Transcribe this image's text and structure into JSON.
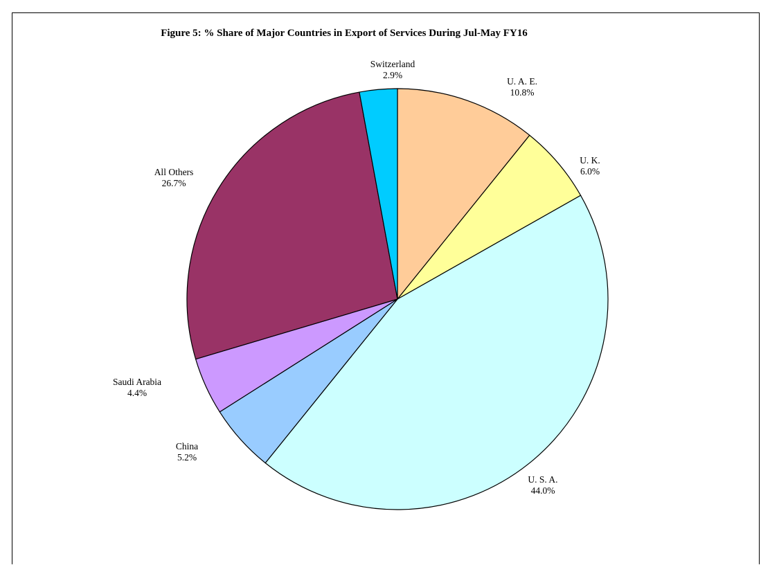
{
  "chart_data": {
    "type": "pie",
    "title": "Figure 5: % Share of Major Countries in Export of Services During Jul-May FY16",
    "slices": [
      {
        "name": "U. A. E.",
        "value": 10.8,
        "label": "10.8%",
        "color": "#FFCC99"
      },
      {
        "name": "U. K.",
        "value": 6.0,
        "label": "6.0%",
        "color": "#FFFF99"
      },
      {
        "name": "U. S. A.",
        "value": 44.0,
        "label": "44.0%",
        "color": "#CCFFFF"
      },
      {
        "name": "China",
        "value": 5.2,
        "label": "5.2%",
        "color": "#99CCFF"
      },
      {
        "name": "Saudi Arabia",
        "value": 4.4,
        "label": "4.4%",
        "color": "#CC99FF"
      },
      {
        "name": "All Others",
        "value": 26.7,
        "label": "26.7%",
        "color": "#993366"
      },
      {
        "name": "Switzerland",
        "value": 2.9,
        "label": "2.9%",
        "color": "#00CCFF"
      }
    ],
    "start_angle": "12 o'clock",
    "direction": "clockwise",
    "legend": "none",
    "border_color": "#000000"
  }
}
